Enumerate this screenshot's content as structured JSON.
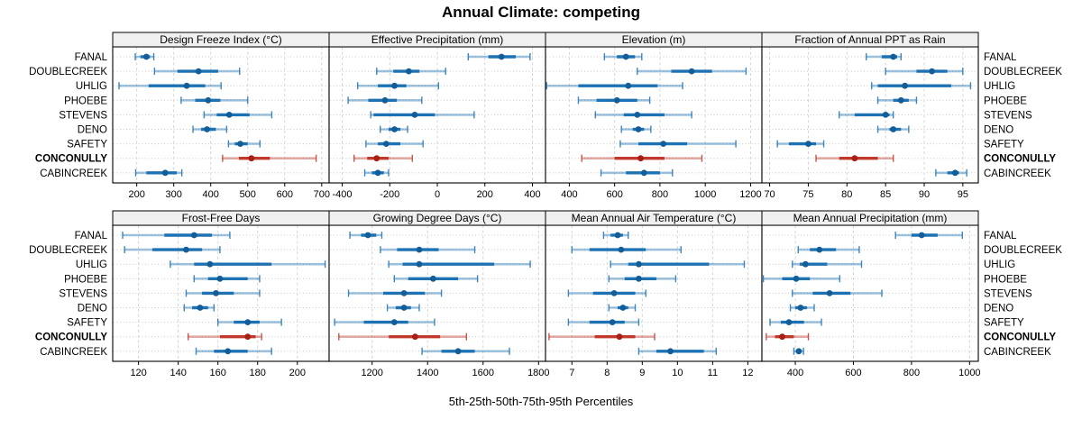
{
  "chart_data": {
    "type": "scatter",
    "subtype": "dot-and-interval trellis (5th-25th-50th-75th-95th percentile whisker plots)",
    "title": "Annual Climate: competing",
    "xlabel": "5th-25th-50th-75th-95th Percentiles",
    "legend_position": "none",
    "grid": "dashed-vertical-with-dotted-row-guides",
    "stations": [
      "FANAL",
      "DOUBLECREEK",
      "UHLIG",
      "PHOEBE",
      "STEVENS",
      "DENO",
      "SAFETY",
      "CONCONULLY",
      "CABINCREEK"
    ],
    "highlight_station": "CONCONULLY",
    "colors": {
      "normal_line": "#1d72b3",
      "normal_dot": "#135e99",
      "highlight_line": "#c0392b",
      "highlight_dot": "#a81f15",
      "strip_bg": "#f0f0f0",
      "panel_border": "#000000",
      "grid_line": "#d4d4d4",
      "row_guide": "#c9c9c9",
      "text": "#000000"
    },
    "panels": [
      {
        "title": "Design Freeze Index (°C)",
        "row": 0,
        "col": 0,
        "xlim": [
          135,
          720
        ],
        "ticks": [
          200,
          300,
          400,
          500,
          600,
          700
        ],
        "values": [
          [
            196,
            210,
            226,
            236,
            246
          ],
          [
            248,
            310,
            367,
            420,
            478
          ],
          [
            152,
            232,
            335,
            385,
            428
          ],
          [
            320,
            358,
            393,
            426,
            500
          ],
          [
            382,
            416,
            450,
            505,
            565
          ],
          [
            352,
            374,
            390,
            414,
            443
          ],
          [
            448,
            465,
            480,
            500,
            533
          ],
          [
            432,
            476,
            510,
            560,
            685
          ],
          [
            197,
            226,
            277,
            308,
            322
          ]
        ]
      },
      {
        "title": "Effective Precipitation (mm)",
        "row": 0,
        "col": 1,
        "xlim": [
          -455,
          455
        ],
        "ticks": [
          -400,
          -200,
          0,
          200,
          400
        ],
        "values": [
          [
            130,
            215,
            270,
            330,
            390
          ],
          [
            -255,
            -185,
            -120,
            -75,
            35
          ],
          [
            -335,
            -250,
            -180,
            -130,
            5
          ],
          [
            -375,
            -290,
            -220,
            -170,
            -65
          ],
          [
            -280,
            -268,
            -95,
            -10,
            155
          ],
          [
            -240,
            -205,
            -180,
            -155,
            -125
          ],
          [
            -300,
            -250,
            -215,
            -155,
            -60
          ],
          [
            -350,
            -295,
            -255,
            -205,
            -105
          ],
          [
            -305,
            -275,
            -250,
            -225,
            -205
          ]
        ]
      },
      {
        "title": "Elevation (m)",
        "row": 0,
        "col": 2,
        "xlim": [
          295,
          1250
        ],
        "ticks": [
          400,
          600,
          800,
          1000,
          1200
        ],
        "values": [
          [
            555,
            610,
            650,
            690,
            720
          ],
          [
            700,
            850,
            940,
            1030,
            1180
          ],
          [
            300,
            440,
            660,
            790,
            900
          ],
          [
            440,
            520,
            610,
            700,
            755
          ],
          [
            515,
            640,
            700,
            820,
            940
          ],
          [
            630,
            680,
            705,
            730,
            760
          ],
          [
            625,
            705,
            815,
            920,
            1135
          ],
          [
            455,
            600,
            715,
            820,
            985
          ],
          [
            540,
            650,
            730,
            800,
            855
          ]
        ]
      },
      {
        "title": "Fraction of Annual PPT as Rain",
        "row": 0,
        "col": 3,
        "xlim": [
          69,
          97
        ],
        "ticks": [
          70,
          75,
          80,
          85,
          90,
          95
        ],
        "values": [
          [
            82.5,
            84.5,
            86,
            86.5,
            87
          ],
          [
            85,
            89,
            91,
            93,
            95
          ],
          [
            83.2,
            84,
            87.5,
            93.5,
            96
          ],
          [
            84,
            86,
            87,
            88,
            89
          ],
          [
            79,
            81,
            85,
            85.5,
            86
          ],
          [
            84,
            85.5,
            86,
            87,
            88
          ],
          [
            71,
            72.5,
            75,
            76,
            77
          ],
          [
            76,
            79,
            81,
            84,
            86
          ],
          [
            91.5,
            93,
            94,
            94.5,
            95.5
          ]
        ]
      },
      {
        "title": "Frost-Free Days",
        "row": 1,
        "col": 0,
        "xlim": [
          107,
          216
        ],
        "ticks": [
          120,
          140,
          160,
          180,
          200
        ],
        "values": [
          [
            112,
            133,
            148,
            157,
            166
          ],
          [
            113,
            127,
            144,
            152,
            161
          ],
          [
            136,
            148,
            156,
            187,
            214
          ],
          [
            148,
            155,
            161,
            175,
            181
          ],
          [
            144,
            152,
            159,
            168,
            181
          ],
          [
            143,
            147,
            151,
            155,
            158
          ],
          [
            160,
            168,
            175,
            181,
            192
          ],
          [
            145,
            161,
            175,
            179,
            182
          ],
          [
            149,
            158,
            165,
            175,
            187
          ]
        ]
      },
      {
        "title": "Growing Degree Days (°C)",
        "row": 1,
        "col": 1,
        "xlim": [
          1045,
          1825
        ],
        "ticks": [
          1200,
          1400,
          1600,
          1800
        ],
        "values": [
          [
            1120,
            1160,
            1185,
            1215,
            1235
          ],
          [
            1230,
            1290,
            1370,
            1440,
            1570
          ],
          [
            1260,
            1310,
            1370,
            1640,
            1770
          ],
          [
            1280,
            1330,
            1420,
            1510,
            1580
          ],
          [
            1115,
            1240,
            1315,
            1390,
            1450
          ],
          [
            1255,
            1285,
            1315,
            1340,
            1370
          ],
          [
            1065,
            1170,
            1280,
            1330,
            1425
          ],
          [
            1080,
            1260,
            1355,
            1445,
            1540
          ],
          [
            1380,
            1450,
            1510,
            1570,
            1695
          ]
        ]
      },
      {
        "title": "Mean Annual Air Temperature (°C)",
        "row": 1,
        "col": 2,
        "xlim": [
          6.25,
          12.4
        ],
        "ticks": [
          7,
          8,
          9,
          10,
          11,
          12
        ],
        "values": [
          [
            7.9,
            8.1,
            8.3,
            8.45,
            8.6
          ],
          [
            7.0,
            7.5,
            8.4,
            9.1,
            10.1
          ],
          [
            8.1,
            8.6,
            8.9,
            10.9,
            11.9
          ],
          [
            8.05,
            8.5,
            8.9,
            9.4,
            9.95
          ],
          [
            6.9,
            7.6,
            8.2,
            8.8,
            9.1
          ],
          [
            8.05,
            8.3,
            8.45,
            8.6,
            8.8
          ],
          [
            6.9,
            7.5,
            8.15,
            8.5,
            8.9
          ],
          [
            6.35,
            7.65,
            8.35,
            8.8,
            9.35
          ],
          [
            8.9,
            9.4,
            9.8,
            10.75,
            11.1
          ]
        ]
      },
      {
        "title": "Mean Annual Precipitation (mm)",
        "row": 1,
        "col": 3,
        "xlim": [
          285,
          1030
        ],
        "ticks": [
          400,
          600,
          800,
          1000
        ],
        "values": [
          [
            745,
            800,
            835,
            890,
            975
          ],
          [
            410,
            450,
            483,
            540,
            620
          ],
          [
            390,
            415,
            435,
            510,
            628
          ],
          [
            290,
            355,
            403,
            450,
            553
          ],
          [
            390,
            460,
            518,
            590,
            698
          ],
          [
            383,
            400,
            418,
            440,
            465
          ],
          [
            313,
            350,
            378,
            430,
            490
          ],
          [
            300,
            330,
            355,
            395,
            445
          ],
          [
            395,
            405,
            412,
            420,
            428
          ]
        ]
      }
    ]
  }
}
